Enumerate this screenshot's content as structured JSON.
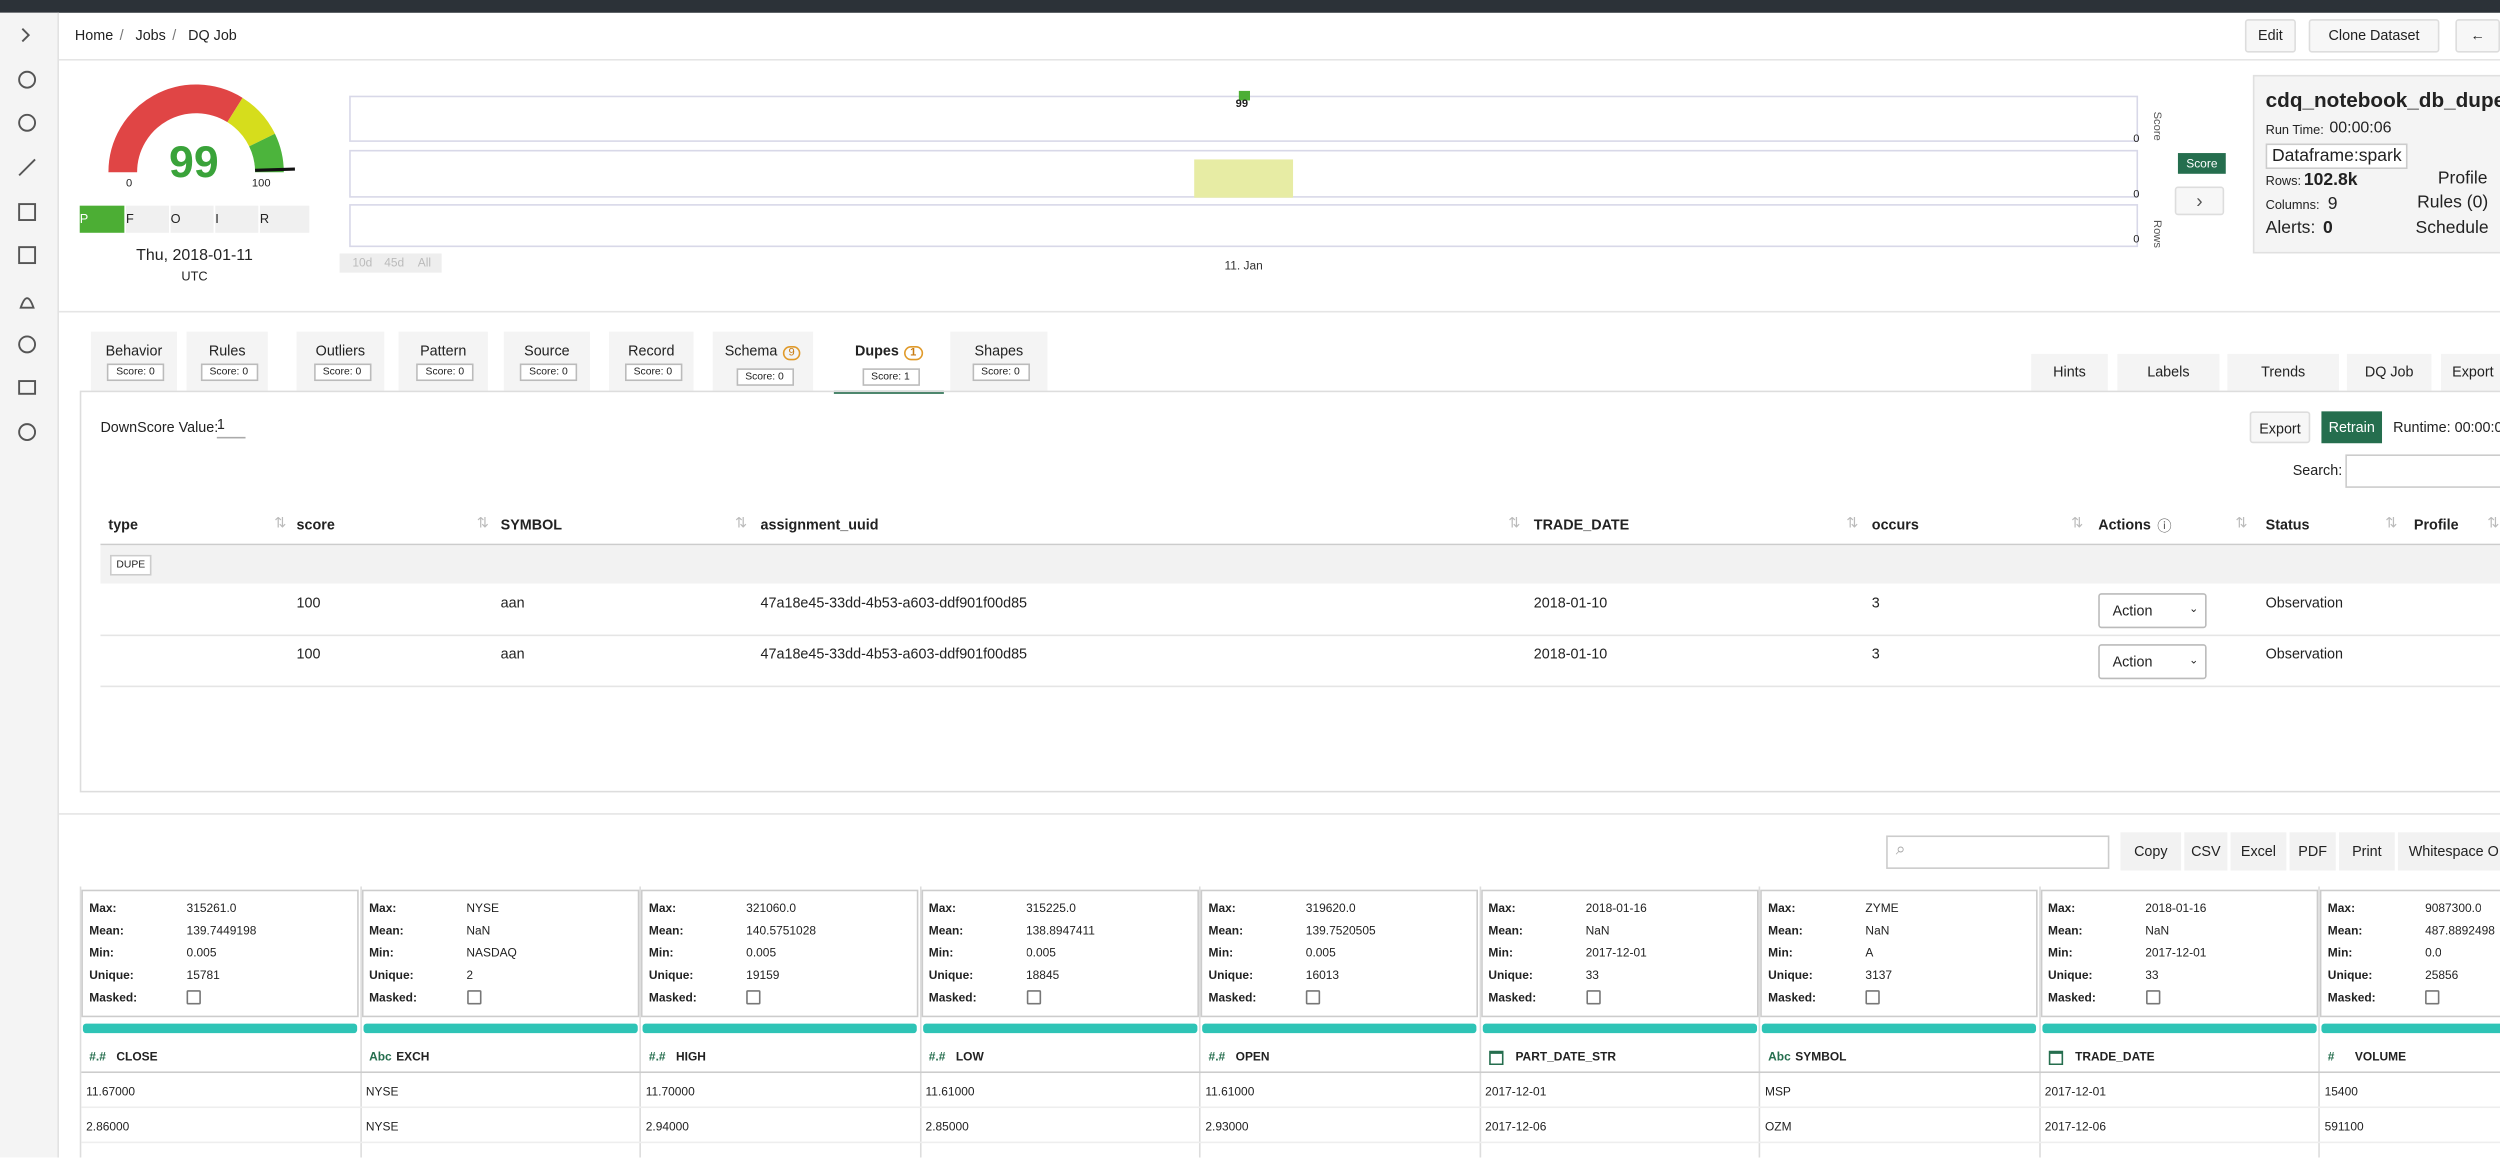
{
  "breadcrumb": [
    "Home",
    "Jobs",
    "DQ Job"
  ],
  "header_buttons": [
    "Edit",
    "Clone Dataset"
  ],
  "gauge": {
    "score": 99,
    "min": 0,
    "max": 100,
    "date": "Thu, 2018-01-11",
    "timezone": "UTC",
    "filters": [
      "P",
      "F",
      "O",
      "I",
      "R"
    ]
  },
  "timeline": {
    "point": 99,
    "zeros": [
      "0",
      "0",
      "0"
    ],
    "axis_labels": [
      "Score",
      "Rows"
    ],
    "legend": "Score",
    "ranges": [
      "10d",
      "45d",
      "All"
    ],
    "x_label": "11. Jan"
  },
  "summary": {
    "title": "cdq_notebook_db_dupe",
    "run_time_label": "Run Time:",
    "run_time": "00:00:06",
    "dataframe": "Dataframe:spark",
    "rows_label": "Rows:",
    "rows": "102.8k",
    "columns_label": "Columns:",
    "columns": "9",
    "alerts_label": "Alerts:",
    "alerts": "0",
    "profile": "Profile",
    "rules": "Rules (0)",
    "schedule": "Schedule"
  },
  "tabs": [
    {
      "name": "Behavior",
      "score": "Score: 0"
    },
    {
      "name": "Rules",
      "score": "Score: 0"
    },
    {
      "name": "Outliers",
      "score": "Score: 0"
    },
    {
      "name": "Pattern",
      "score": "Score: 0"
    },
    {
      "name": "Source",
      "score": "Score: 0"
    },
    {
      "name": "Record",
      "score": "Score: 0"
    },
    {
      "name": "Schema",
      "badge": "9",
      "score": "Score: 0"
    },
    {
      "name": "Dupes",
      "badge": "1",
      "score": "Score: 1"
    },
    {
      "name": "Shapes",
      "score": "Score: 0"
    }
  ],
  "right_tabs": [
    "Hints",
    "Labels",
    "Trends",
    "DQ Job",
    "Export"
  ],
  "dupes": {
    "downscore_label": "DownScore Value:",
    "downscore": "1",
    "buttons": [
      "Export",
      "Retrain"
    ],
    "runtime": "Runtime: 00:00:0",
    "search_label": "Search:",
    "columns": [
      "type",
      "score",
      "SYMBOL",
      "assignment_uuid",
      "TRADE_DATE",
      "occurs",
      "Actions",
      "Status",
      "Profile"
    ],
    "group": "DUPE",
    "rows": [
      [
        "100",
        "aan",
        "47a18e45-33dd-4b53-a603-ddf901f00d85",
        "2018-01-10",
        "3",
        "Action",
        "Observation"
      ],
      [
        "100",
        "aan",
        "47a18e45-33dd-4b53-a603-ddf901f00d85",
        "2018-01-10",
        "3",
        "Action",
        "Observation"
      ]
    ]
  },
  "profile": {
    "buttons": [
      "Copy",
      "CSV",
      "Excel",
      "PDF",
      "Print",
      "Whitespace O"
    ],
    "stat_labels": [
      "Max:",
      "Mean:",
      "Min:",
      "Unique:",
      "Masked:"
    ],
    "columns": [
      {
        "type": "#.#",
        "name": "CLOSE",
        "stats": [
          "315261.0",
          "139.7449198",
          "0.005",
          "15781"
        ]
      },
      {
        "type": "Abc",
        "name": "EXCH",
        "stats": [
          "NYSE",
          "NaN",
          "NASDAQ",
          "2"
        ]
      },
      {
        "type": "#.#",
        "name": "HIGH",
        "stats": [
          "321060.0",
          "140.5751028",
          "0.005",
          "19159"
        ]
      },
      {
        "type": "#.#",
        "name": "LOW",
        "stats": [
          "315225.0",
          "138.8947411",
          "0.005",
          "18845"
        ]
      },
      {
        "type": "#.#",
        "name": "OPEN",
        "stats": [
          "319620.0",
          "139.7520505",
          "0.005",
          "16013"
        ]
      },
      {
        "name": "PART_DATE_STR",
        "stats": [
          "2018-01-16",
          "NaN",
          "2017-12-01",
          "33"
        ]
      },
      {
        "type": "Abc",
        "name": "SYMBOL",
        "stats": [
          "ZYME",
          "NaN",
          "A",
          "3137"
        ]
      },
      {
        "name": "TRADE_DATE",
        "stats": [
          "2018-01-16",
          "NaN",
          "2017-12-01",
          "33"
        ]
      },
      {
        "type": "#",
        "name": "VOLUME",
        "stats": [
          "9087300.0",
          "487.8892498",
          "0.0",
          "25856"
        ]
      }
    ],
    "rows": [
      [
        "11.67000",
        "NYSE",
        "11.70000",
        "11.61000",
        "11.61000",
        "2017-12-01",
        "MSP",
        "2017-12-01",
        "15400"
      ],
      [
        "2.86000",
        "NYSE",
        "2.94000",
        "2.85000",
        "2.93000",
        "2017-12-06",
        "OZM",
        "2017-12-06",
        "591100"
      ]
    ]
  }
}
